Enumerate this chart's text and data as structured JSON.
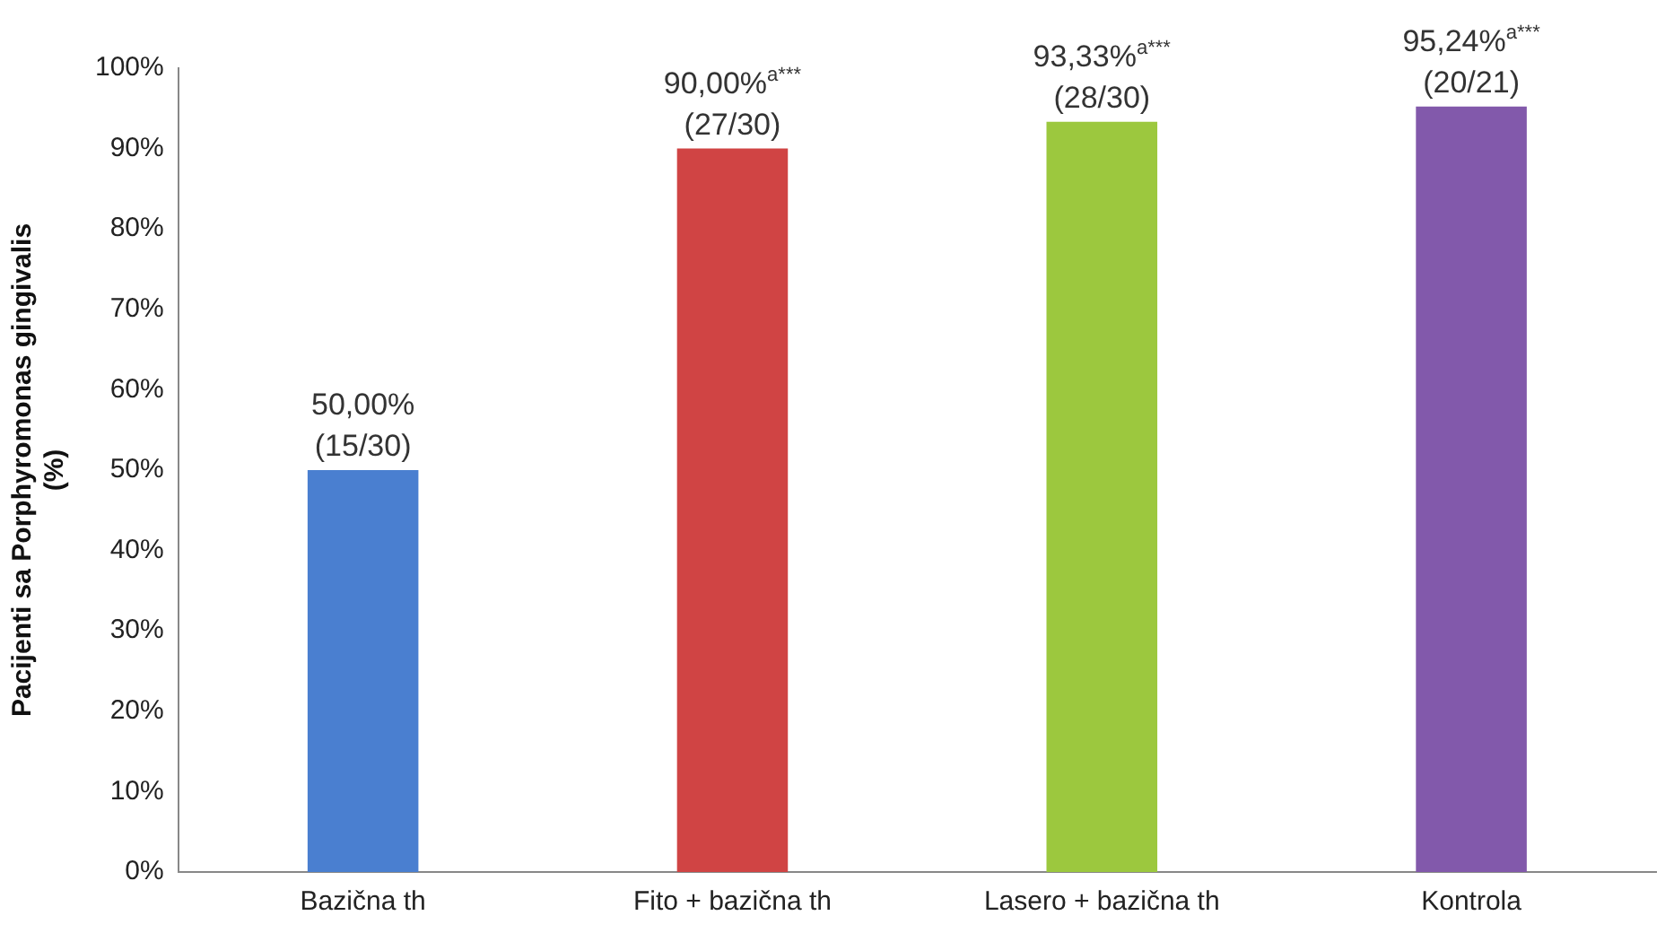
{
  "chart_data": {
    "type": "bar",
    "ylabel": "Pacijenti sa Porphyromonas gingivalis\n(%)",
    "categories": [
      "Bazična th",
      "Fito + bazična th",
      "Lasero + bazična th",
      "Kontrola"
    ],
    "values": [
      50,
      90,
      93.33,
      95.24
    ],
    "colors": [
      "#4a7fd0",
      "#d04444",
      "#9cc83e",
      "#8259ab"
    ],
    "value_labels": [
      "50,00%\n(15/30)",
      "90,00%$^{a***}$\n(27/30)",
      "93,33%$^{a***}$\n(28/30)",
      "95,24%$^{a***}$\n(20/21)"
    ],
    "ylim": [
      0,
      100
    ],
    "yticks": [
      {
        "value": 0,
        "label": "0%"
      },
      {
        "value": 10,
        "label": "10%"
      },
      {
        "value": 20,
        "label": "20%"
      },
      {
        "value": 30,
        "label": "30%"
      },
      {
        "value": 40,
        "label": "40%"
      },
      {
        "value": 50,
        "label": "50%"
      },
      {
        "value": 60,
        "label": "60%"
      },
      {
        "value": 70,
        "label": "70%"
      },
      {
        "value": 80,
        "label": "80%"
      },
      {
        "value": 90,
        "label": "90%"
      },
      {
        "value": 100,
        "label": "100%"
      }
    ],
    "grid": false,
    "legend": false
  }
}
